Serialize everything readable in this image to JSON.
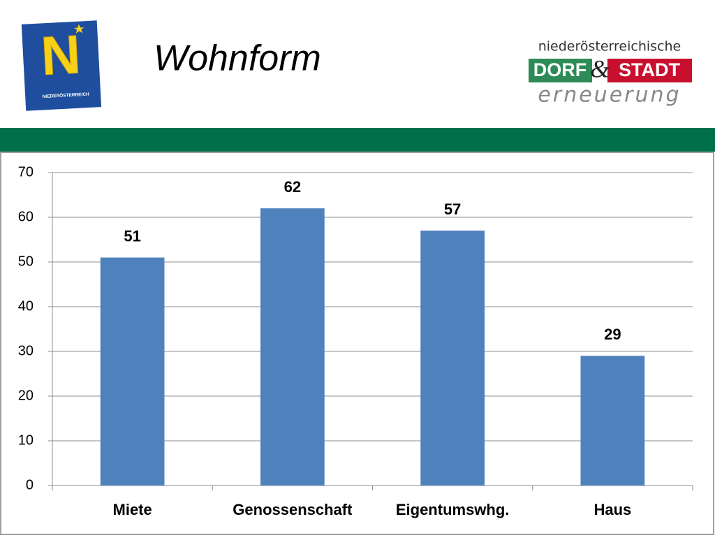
{
  "logo_left": {
    "letter": "N",
    "caption": "NIEDERÖSTERREICH"
  },
  "logo_right": {
    "top": "niederösterreichische",
    "left": "DORF",
    "ampersand": "&",
    "right": "STADT",
    "bottom": "erneuerung"
  },
  "chart_data": {
    "type": "bar",
    "title": "Wohnform",
    "categories": [
      "Miete",
      "Genossenschaft",
      "Eigentumswhg.",
      "Haus"
    ],
    "values": [
      51,
      62,
      57,
      29
    ],
    "color": "#4f81bd",
    "ylim": [
      0,
      70
    ],
    "yticks": [
      0,
      10,
      20,
      30,
      40,
      50,
      60,
      70
    ],
    "grid": true
  }
}
